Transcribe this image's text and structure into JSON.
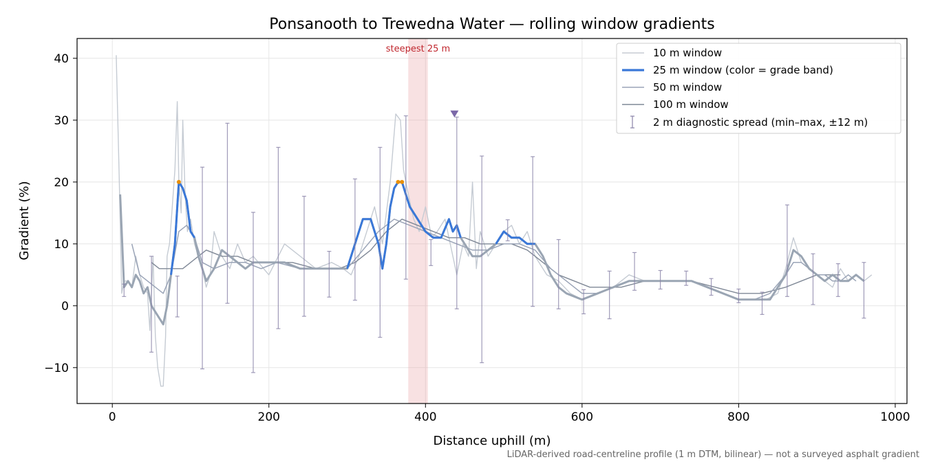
{
  "chart_data": {
    "type": "line",
    "title": "Ponsanooth to Trewedna Water — rolling window gradients",
    "xlabel": "Distance uphill (m)",
    "ylabel": "Gradient (%)",
    "xlim": [
      -45,
      1015
    ],
    "ylim": [
      -15.8,
      43.2
    ],
    "xticks": [
      0,
      200,
      400,
      600,
      800,
      1000
    ],
    "yticks": [
      -10,
      0,
      10,
      20,
      30,
      40
    ],
    "xtick_labels": [
      "0",
      "200",
      "400",
      "600",
      "800",
      "1000"
    ],
    "ytick_labels": [
      "−10",
      "0",
      "10",
      "20",
      "30",
      "40"
    ],
    "grid": true,
    "legend_position": "top-right",
    "footnote": "LiDAR-derived road-centreline profile (1 m DTM, bilinear) — not a surveyed asphalt gradient",
    "annotation": {
      "text": "steepest 25 m",
      "x_start": 378,
      "x_end": 403
    },
    "marker": {
      "x": 437,
      "y": 31
    },
    "series": [
      {
        "name": "10 m window",
        "color": "#c5cbd3",
        "x": [
          5,
          9,
          12,
          15,
          20,
          25,
          30,
          35,
          40,
          45,
          48,
          52,
          55,
          58,
          62,
          65,
          68,
          70,
          73,
          76,
          80,
          83,
          85,
          88,
          90,
          93,
          96,
          100,
          105,
          110,
          115,
          120,
          125,
          130,
          140,
          150,
          160,
          170,
          180,
          200,
          220,
          240,
          260,
          280,
          295,
          305,
          315,
          325,
          335,
          345,
          355,
          362,
          368,
          372,
          378,
          385,
          392,
          400,
          408,
          415,
          425,
          435,
          440,
          448,
          455,
          460,
          465,
          470,
          480,
          490,
          500,
          510,
          520,
          530,
          540,
          555,
          570,
          585,
          600,
          620,
          640,
          660,
          680,
          700,
          720,
          740,
          760,
          780,
          800,
          820,
          835,
          850,
          860,
          870,
          880,
          890,
          900,
          910,
          920,
          930,
          940,
          950,
          960,
          970
        ],
        "y": [
          40.5,
          20,
          2,
          4,
          4,
          3,
          8,
          5,
          3,
          2,
          -4,
          8,
          -5,
          -10,
          -13,
          -13,
          -5,
          8,
          10,
          15,
          22,
          33,
          20,
          15,
          30,
          18,
          12,
          14,
          10,
          8,
          6,
          3,
          5,
          12,
          8,
          6,
          10,
          7,
          8,
          5,
          10,
          8,
          6,
          7,
          6,
          5,
          8,
          12,
          16,
          10,
          20,
          31,
          30,
          22,
          18,
          14,
          12,
          16,
          11,
          12,
          14,
          8,
          5,
          10,
          8,
          20,
          6,
          12,
          8,
          10,
          12,
          13,
          10,
          12,
          8,
          5,
          4,
          2,
          1,
          2,
          3,
          5,
          4,
          4,
          4,
          4,
          3,
          2,
          1,
          1,
          1,
          2,
          6,
          11,
          7,
          6,
          5,
          4,
          3,
          6,
          4,
          5,
          4,
          5
        ]
      },
      {
        "name": "25 m window (color = grade band)",
        "color": "#3a78d8",
        "x": [
          10,
          15,
          20,
          25,
          30,
          35,
          40,
          45,
          50,
          55,
          60,
          65,
          70,
          75,
          80,
          85,
          90,
          95,
          100,
          105,
          110,
          120,
          130,
          140,
          150,
          160,
          170,
          180,
          200,
          220,
          240,
          260,
          280,
          300,
          310,
          320,
          330,
          340,
          345,
          350,
          355,
          360,
          365,
          370,
          375,
          380,
          385,
          390,
          395,
          400,
          410,
          420,
          430,
          435,
          440,
          445,
          450,
          460,
          470,
          480,
          490,
          500,
          510,
          520,
          530,
          540,
          550,
          560,
          570,
          580,
          600,
          620,
          640,
          660,
          680,
          700,
          720,
          740,
          760,
          780,
          800,
          820,
          840,
          860,
          870,
          880,
          890,
          900,
          910,
          920,
          930,
          940,
          950,
          960
        ],
        "y": [
          18,
          3,
          4,
          3,
          5,
          4,
          2,
          3,
          0,
          -1,
          -2,
          -3,
          0,
          5,
          10,
          20,
          19,
          17,
          12,
          11,
          8,
          4,
          6,
          9,
          8,
          7,
          6,
          7,
          7,
          7,
          6,
          6,
          6,
          6,
          10,
          14,
          14,
          10,
          6,
          10,
          16,
          19,
          20,
          20,
          18,
          16,
          15,
          14,
          13,
          12,
          11,
          11,
          14,
          12,
          13,
          11,
          10,
          8,
          8,
          9,
          10,
          12,
          11,
          11,
          10,
          10,
          8,
          5,
          3,
          2,
          1,
          2,
          3,
          4,
          4,
          4,
          4,
          4,
          3,
          2,
          1,
          1,
          1,
          5,
          9,
          8,
          6,
          5,
          4,
          5,
          4,
          4,
          5,
          4
        ],
        "colored_segments": [
          {
            "x_start": 12,
            "x_end": 14
          },
          {
            "x_start": 80,
            "x_end": 108
          },
          {
            "x_start": 305,
            "x_end": 445
          },
          {
            "x_start": 490,
            "x_end": 545
          }
        ],
        "steep_color": "#e8900a",
        "base_color": "#9aa5b3"
      },
      {
        "name": "50 m window",
        "color": "#9aa4b7",
        "x": [
          25,
          35,
          45,
          55,
          65,
          75,
          85,
          95,
          105,
          115,
          130,
          150,
          170,
          190,
          210,
          240,
          270,
          300,
          320,
          340,
          360,
          380,
          400,
          420,
          440,
          460,
          480,
          500,
          520,
          540,
          560,
          580,
          600,
          620,
          640,
          660,
          680,
          700,
          720,
          740,
          760,
          780,
          800,
          820,
          840,
          860,
          870,
          880,
          890,
          900,
          910,
          920,
          930,
          940,
          950
        ],
        "y": [
          10,
          5,
          4,
          3,
          2,
          5,
          12,
          13,
          11,
          7,
          6,
          7,
          7,
          6,
          7,
          6,
          6,
          6,
          9,
          12,
          14,
          13,
          12,
          11,
          10,
          9,
          9,
          10,
          10,
          9,
          6,
          4,
          2,
          2,
          3,
          4,
          4,
          4,
          4,
          4,
          3,
          2,
          1,
          1,
          2,
          5,
          7,
          7,
          6,
          5,
          5,
          4,
          4,
          5,
          4
        ]
      },
      {
        "name": "100 m window",
        "color": "#7f8896",
        "x": [
          50,
          60,
          70,
          80,
          90,
          100,
          110,
          120,
          140,
          160,
          180,
          200,
          230,
          260,
          290,
          310,
          330,
          350,
          370,
          390,
          410,
          430,
          450,
          470,
          490,
          510,
          530,
          550,
          570,
          590,
          610,
          630,
          650,
          680,
          710,
          740,
          770,
          800,
          830,
          860,
          880,
          900,
          920,
          930
        ],
        "y": [
          7,
          6,
          6,
          6,
          6,
          7,
          8,
          9,
          8,
          8,
          7,
          7,
          7,
          6,
          6,
          7,
          9,
          12,
          14,
          13,
          12,
          11,
          11,
          10,
          10,
          10,
          9,
          7,
          5,
          4,
          3,
          3,
          3,
          4,
          4,
          4,
          3,
          2,
          2,
          3,
          4,
          5,
          5,
          5
        ]
      }
    ],
    "errorbars": {
      "name": "2 m diagnostic spread (min–max, ±12 m)",
      "color": "#8882a8",
      "x": [
        15,
        50,
        83,
        115,
        147,
        180,
        212,
        245,
        277,
        310,
        342,
        375,
        407,
        440,
        472,
        505,
        537,
        570,
        602,
        635,
        667,
        700,
        733,
        765,
        800,
        830,
        862,
        895,
        927,
        960
      ],
      "y": [
        3,
        2,
        5,
        8,
        9,
        6,
        8,
        7,
        6,
        9,
        7,
        15,
        10,
        10,
        6,
        11,
        10,
        6,
        1,
        2,
        4,
        4,
        4,
        3,
        1,
        1,
        5,
        4,
        4,
        3
      ],
      "low": [
        1.5,
        -7.5,
        -1.8,
        -10.2,
        0.4,
        -10.8,
        -3.7,
        -1.7,
        1.4,
        0.9,
        -5.1,
        4.3,
        6.5,
        -0.5,
        -9.2,
        10.5,
        -0.1,
        -0.5,
        -1.3,
        -2.1,
        2.5,
        2.7,
        3.3,
        1.7,
        0.5,
        -1.4,
        1.5,
        0.2,
        1.5,
        -2.0
      ],
      "high": [
        3.5,
        8.0,
        4.8,
        22.4,
        29.5,
        15.1,
        25.6,
        17.7,
        8.8,
        20.5,
        25.6,
        30.7,
        10.7,
        30.5,
        24.2,
        13.9,
        24.1,
        10.7,
        2.6,
        5.6,
        8.6,
        5.7,
        5.6,
        4.4,
        2.7,
        2.2,
        16.3,
        8.4,
        6.8,
        7.0
      ]
    }
  }
}
